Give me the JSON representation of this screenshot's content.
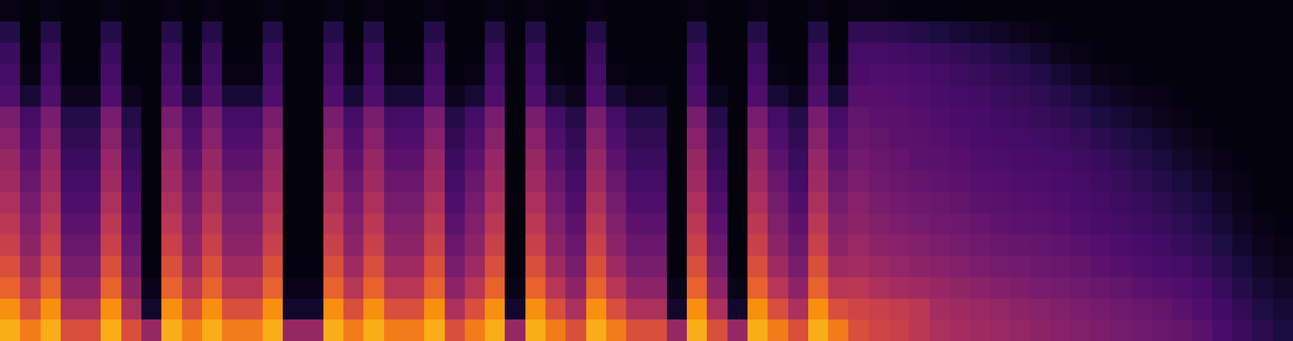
{
  "chart_data": {
    "type": "heatmap",
    "tick_labels": false,
    "x": [
      0,
      1,
      2,
      3,
      4,
      5,
      6,
      7,
      8,
      9,
      10,
      11,
      12,
      13,
      14,
      15,
      16,
      17,
      18,
      19,
      20,
      21,
      22,
      23,
      24,
      25,
      26,
      27,
      28,
      29,
      30,
      31,
      32,
      33,
      34,
      35,
      36,
      37,
      38,
      39,
      40,
      41,
      42,
      43,
      44,
      45,
      46,
      47,
      48,
      49,
      50,
      51,
      52,
      53,
      54,
      55,
      56,
      57,
      58,
      59,
      60,
      61,
      62,
      63
    ],
    "y": [
      0,
      1,
      2,
      3,
      4,
      5,
      6,
      7,
      8,
      9,
      10,
      11,
      12,
      13,
      14,
      15
    ],
    "xlim": [
      -0.5,
      63.5
    ],
    "ylim": [
      -0.5,
      15.5
    ],
    "xticks": [],
    "yticks": [],
    "color_range": [
      0,
      100
    ],
    "cells_by_column": [
      [
        92,
        88,
        80,
        75,
        70,
        66,
        62,
        58,
        55,
        50,
        45,
        32,
        28,
        25,
        18,
        4
      ],
      [
        85,
        75,
        65,
        58,
        52,
        48,
        44,
        40,
        36,
        32,
        28,
        12,
        4,
        3,
        2,
        2
      ],
      [
        92,
        88,
        80,
        75,
        70,
        66,
        62,
        58,
        55,
        50,
        45,
        32,
        28,
        25,
        18,
        4
      ],
      [
        75,
        62,
        52,
        45,
        40,
        36,
        32,
        28,
        25,
        22,
        18,
        6,
        3,
        2,
        2,
        2
      ],
      [
        75,
        62,
        52,
        45,
        40,
        36,
        32,
        28,
        25,
        22,
        18,
        6,
        3,
        2,
        2,
        2
      ],
      [
        92,
        88,
        80,
        75,
        70,
        66,
        62,
        58,
        55,
        50,
        45,
        32,
        28,
        25,
        18,
        4
      ],
      [
        75,
        62,
        52,
        45,
        40,
        36,
        32,
        28,
        25,
        22,
        18,
        6,
        3,
        2,
        2,
        2
      ],
      [
        55,
        10,
        5,
        3,
        2,
        2,
        2,
        2,
        2,
        2,
        2,
        2,
        2,
        2,
        2,
        2
      ],
      [
        92,
        88,
        80,
        75,
        70,
        66,
        62,
        58,
        55,
        50,
        45,
        32,
        28,
        25,
        18,
        4
      ],
      [
        85,
        75,
        65,
        58,
        52,
        48,
        44,
        40,
        36,
        32,
        28,
        12,
        4,
        3,
        2,
        2
      ],
      [
        92,
        88,
        80,
        75,
        70,
        66,
        62,
        58,
        55,
        50,
        45,
        32,
        28,
        25,
        18,
        4
      ],
      [
        85,
        75,
        65,
        58,
        52,
        48,
        44,
        40,
        36,
        32,
        28,
        12,
        4,
        3,
        2,
        2
      ],
      [
        85,
        75,
        65,
        58,
        52,
        48,
        44,
        40,
        36,
        32,
        28,
        12,
        4,
        3,
        2,
        2
      ],
      [
        92,
        88,
        80,
        75,
        70,
        66,
        62,
        58,
        55,
        50,
        45,
        32,
        28,
        25,
        18,
        4
      ],
      [
        55,
        10,
        5,
        3,
        2,
        2,
        2,
        2,
        2,
        2,
        2,
        2,
        2,
        2,
        2,
        2
      ],
      [
        55,
        10,
        5,
        3,
        2,
        2,
        2,
        2,
        2,
        2,
        2,
        2,
        2,
        2,
        2,
        2
      ],
      [
        92,
        88,
        80,
        75,
        70,
        66,
        62,
        58,
        55,
        50,
        45,
        32,
        28,
        25,
        18,
        4
      ],
      [
        85,
        75,
        65,
        58,
        52,
        48,
        44,
        40,
        36,
        32,
        28,
        12,
        4,
        3,
        2,
        2
      ],
      [
        92,
        88,
        80,
        75,
        70,
        66,
        62,
        58,
        55,
        50,
        45,
        32,
        28,
        25,
        18,
        4
      ],
      [
        85,
        75,
        65,
        58,
        52,
        48,
        44,
        40,
        36,
        32,
        28,
        12,
        4,
        3,
        2,
        2
      ],
      [
        85,
        75,
        65,
        58,
        52,
        48,
        44,
        40,
        36,
        32,
        28,
        12,
        4,
        3,
        2,
        2
      ],
      [
        92,
        88,
        80,
        75,
        70,
        66,
        62,
        58,
        55,
        50,
        45,
        32,
        28,
        25,
        18,
        4
      ],
      [
        75,
        62,
        52,
        45,
        40,
        36,
        32,
        28,
        25,
        22,
        18,
        6,
        3,
        2,
        2,
        2
      ],
      [
        85,
        75,
        65,
        58,
        52,
        48,
        44,
        40,
        36,
        32,
        28,
        12,
        4,
        3,
        2,
        2
      ],
      [
        92,
        88,
        80,
        75,
        70,
        66,
        62,
        58,
        55,
        50,
        45,
        32,
        28,
        25,
        18,
        4
      ],
      [
        55,
        10,
        5,
        3,
        2,
        2,
        2,
        2,
        2,
        2,
        2,
        2,
        2,
        2,
        2,
        2
      ],
      [
        92,
        88,
        80,
        75,
        70,
        66,
        62,
        58,
        55,
        50,
        45,
        32,
        28,
        25,
        18,
        4
      ],
      [
        85,
        75,
        65,
        58,
        52,
        48,
        44,
        40,
        36,
        32,
        28,
        12,
        4,
        3,
        2,
        2
      ],
      [
        75,
        62,
        52,
        45,
        40,
        36,
        32,
        28,
        25,
        22,
        18,
        6,
        3,
        2,
        2,
        2
      ],
      [
        92,
        88,
        80,
        75,
        70,
        66,
        62,
        58,
        55,
        50,
        45,
        32,
        28,
        25,
        18,
        4
      ],
      [
        85,
        75,
        65,
        58,
        52,
        48,
        44,
        40,
        36,
        32,
        28,
        12,
        4,
        3,
        2,
        2
      ],
      [
        75,
        62,
        52,
        45,
        40,
        36,
        32,
        28,
        25,
        22,
        18,
        6,
        3,
        2,
        2,
        2
      ],
      [
        75,
        62,
        52,
        45,
        40,
        36,
        32,
        28,
        25,
        22,
        18,
        6,
        3,
        2,
        2,
        2
      ],
      [
        55,
        10,
        5,
        3,
        2,
        2,
        2,
        2,
        2,
        2,
        2,
        2,
        2,
        2,
        2,
        2
      ],
      [
        92,
        88,
        80,
        75,
        70,
        66,
        62,
        58,
        55,
        50,
        45,
        32,
        28,
        25,
        18,
        4
      ],
      [
        75,
        62,
        52,
        45,
        40,
        36,
        32,
        28,
        25,
        22,
        18,
        6,
        3,
        2,
        2,
        2
      ],
      [
        55,
        10,
        5,
        3,
        2,
        2,
        2,
        2,
        2,
        2,
        2,
        2,
        2,
        2,
        2,
        2
      ],
      [
        92,
        88,
        80,
        75,
        70,
        66,
        62,
        58,
        55,
        50,
        45,
        32,
        28,
        25,
        18,
        4
      ],
      [
        85,
        75,
        65,
        58,
        52,
        48,
        44,
        40,
        36,
        32,
        28,
        12,
        4,
        3,
        2,
        2
      ],
      [
        75,
        62,
        52,
        45,
        40,
        36,
        32,
        28,
        25,
        22,
        18,
        6,
        3,
        2,
        2,
        2
      ],
      [
        92,
        88,
        80,
        75,
        70,
        66,
        62,
        58,
        55,
        50,
        45,
        32,
        28,
        25,
        18,
        4
      ],
      [
        85,
        75,
        65,
        58,
        52,
        48,
        44,
        40,
        36,
        32,
        28,
        12,
        4,
        3,
        2,
        2
      ],
      [
        75,
        72,
        66,
        60,
        56,
        52,
        50,
        46,
        43,
        40,
        38,
        34,
        30,
        28,
        22,
        4
      ],
      [
        72,
        70,
        62,
        56,
        52,
        48,
        45,
        42,
        40,
        38,
        36,
        34,
        32,
        28,
        22,
        4
      ],
      [
        70,
        68,
        60,
        54,
        50,
        46,
        43,
        40,
        38,
        36,
        35,
        33,
        31,
        27,
        20,
        3
      ],
      [
        66,
        66,
        58,
        52,
        48,
        44,
        41,
        38,
        36,
        35,
        34,
        32,
        30,
        26,
        18,
        3
      ],
      [
        62,
        60,
        55,
        50,
        46,
        42,
        40,
        37,
        35,
        34,
        32,
        30,
        28,
        24,
        15,
        3
      ],
      [
        60,
        58,
        53,
        48,
        44,
        41,
        38,
        36,
        34,
        32,
        30,
        28,
        26,
        22,
        12,
        3
      ],
      [
        58,
        56,
        51,
        46,
        42,
        39,
        36,
        34,
        32,
        30,
        29,
        27,
        24,
        20,
        10,
        2
      ],
      [
        56,
        54,
        49,
        44,
        40,
        37,
        35,
        33,
        31,
        29,
        27,
        25,
        22,
        17,
        8,
        2
      ],
      [
        54,
        52,
        47,
        43,
        39,
        36,
        34,
        32,
        30,
        28,
        26,
        23,
        20,
        14,
        6,
        2
      ],
      [
        52,
        50,
        45,
        41,
        38,
        35,
        33,
        31,
        29,
        27,
        24,
        21,
        17,
        10,
        4,
        2
      ],
      [
        50,
        48,
        44,
        40,
        37,
        34,
        32,
        30,
        28,
        26,
        22,
        18,
        12,
        6,
        3,
        2
      ],
      [
        48,
        46,
        42,
        38,
        35,
        32,
        30,
        28,
        26,
        23,
        19,
        14,
        8,
        4,
        2,
        2
      ],
      [
        46,
        44,
        40,
        36,
        33,
        30,
        28,
        26,
        24,
        20,
        15,
        10,
        5,
        3,
        2,
        2
      ],
      [
        44,
        42,
        38,
        34,
        31,
        28,
        26,
        24,
        21,
        17,
        12,
        7,
        4,
        2,
        2,
        2
      ],
      [
        42,
        40,
        36,
        32,
        29,
        26,
        24,
        21,
        18,
        14,
        9,
        5,
        3,
        2,
        2,
        2
      ],
      [
        40,
        38,
        34,
        30,
        27,
        24,
        21,
        18,
        14,
        10,
        6,
        4,
        2,
        2,
        2,
        2
      ],
      [
        38,
        35,
        32,
        28,
        24,
        21,
        18,
        14,
        10,
        7,
        4,
        3,
        2,
        2,
        2,
        2
      ],
      [
        35,
        32,
        29,
        25,
        21,
        17,
        14,
        10,
        7,
        5,
        3,
        2,
        2,
        2,
        2,
        2
      ],
      [
        30,
        27,
        24,
        20,
        16,
        12,
        9,
        6,
        4,
        3,
        2,
        2,
        2,
        2,
        2,
        2
      ],
      [
        25,
        22,
        18,
        14,
        10,
        7,
        5,
        4,
        3,
        2,
        2,
        2,
        2,
        2,
        2,
        2
      ],
      [
        20,
        16,
        12,
        9,
        6,
        4,
        3,
        2,
        2,
        2,
        2,
        2,
        2,
        2,
        2,
        2
      ],
      [
        15,
        12,
        9,
        6,
        4,
        3,
        2,
        2,
        2,
        2,
        2,
        2,
        2,
        2,
        2,
        2
      ]
    ]
  }
}
